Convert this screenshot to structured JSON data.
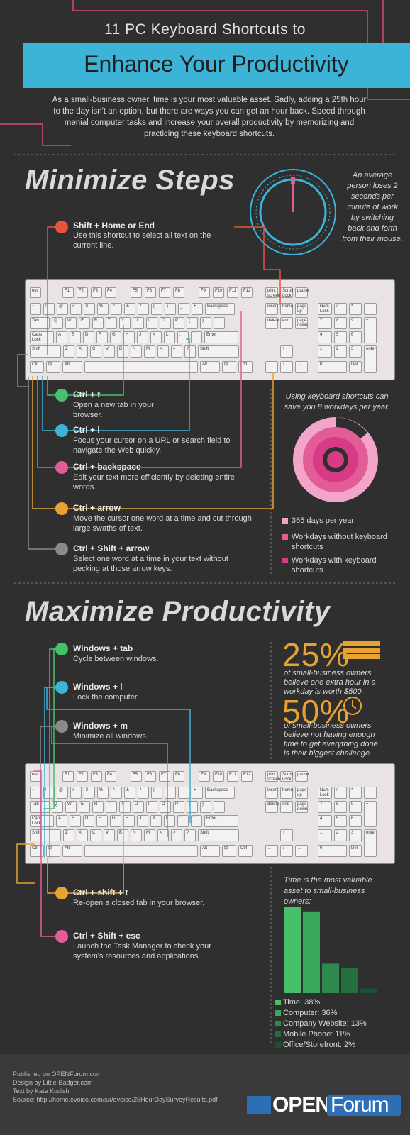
{
  "header": {
    "subtitle": "11 PC Keyboard Shortcuts to",
    "title": "Enhance Your Productivity",
    "intro": "As a small-business owner, time is your most valuable asset. Sadly, adding a 25th hour to the day isn't an option, but there are ways you can get an hour back. Speed through menial computer tasks and increase your overall productivity by memorizing and practicing these keyboard shortcuts."
  },
  "minimize": {
    "title": "Minimize Steps",
    "clock_note": "An average person loses 2 seconds per minute of work by switching back and forth from their mouse.",
    "shortcuts": [
      {
        "title": "Shift + Home or End",
        "desc": "Use this shortcut to select all text on the current line."
      },
      {
        "title": "Ctrl + t",
        "desc": "Open a new tab in your browser."
      },
      {
        "title": "Ctrl + l",
        "desc": "Focus your cursor on a URL or search field to navigate the Web quickly."
      },
      {
        "title": "Ctrl + backspace",
        "desc": "Edit your text more efficiently by deleting entire words."
      },
      {
        "title": "Ctrl + arrow",
        "desc": "Move the cursor one word at a time and cut through large swaths of text."
      },
      {
        "title": "Ctrl + Shift + arrow",
        "desc": "Select one word at a time in your text without pecking at those arrow keys."
      }
    ],
    "workdays_note": "Using keyboard shortcuts can save you 8 workdays per year.",
    "legend": [
      {
        "label": "365 days per year",
        "color": "#f2a5c8"
      },
      {
        "label": "Workdays without keyboard shortcuts",
        "color": "#e25d97"
      },
      {
        "label": "Workdays with keyboard shortcuts",
        "color": "#d93a86"
      }
    ]
  },
  "maximize": {
    "title": "Maximize Productivity",
    "shortcuts": [
      {
        "title": "Windows + tab",
        "desc": "Cycle between windows."
      },
      {
        "title": "Windows + l",
        "desc": "Lock the computer."
      },
      {
        "title": "Windows + m",
        "desc": "Minimize all windows."
      },
      {
        "title": "Ctrl + shift + t",
        "desc": "Re-open a closed tab in your browser."
      },
      {
        "title": "Ctrl + Shift + esc",
        "desc": "Launch the Task Manager to check your system's resources and applications."
      }
    ],
    "stats": [
      {
        "value": "25%",
        "text": "of small-business owners believe one extra hour in a workday is worth $500."
      },
      {
        "value": "50%",
        "text": "of small-business owners believe not having enough time to get everything done is their biggest challenge."
      }
    ],
    "bar_note": "Time is the most valuable asset to small-business owners:"
  },
  "chart_data": {
    "type": "bar",
    "categories": [
      "Time",
      "Computer",
      "Company Website",
      "Mobile Phone",
      "Office/Storefront"
    ],
    "values": [
      38,
      36,
      13,
      11,
      2
    ],
    "labels": [
      "Time: 38%",
      "Computer: 36%",
      "Company Website: 13%",
      "Mobile Phone: 11%",
      "Office/Storefront: 2%"
    ],
    "colors": [
      "#46c06a",
      "#3aa85b",
      "#2e8a4c",
      "#23703d",
      "#1a5230"
    ]
  },
  "keyboard": {
    "fkeys": [
      "esc",
      "F1",
      "F2",
      "F3",
      "F4",
      "F5",
      "F6",
      "F7",
      "F8",
      "F9",
      "F10",
      "F11",
      "F12"
    ],
    "row1": [
      "~",
      "!",
      "@",
      "#",
      "$",
      "%",
      "^",
      "&",
      "*",
      "(",
      ")",
      "_",
      "+",
      "Backspace"
    ],
    "row2": [
      "Tab",
      "Q",
      "W",
      "E",
      "R",
      "T",
      "Y",
      "U",
      "I",
      "O",
      "P",
      "{",
      "}",
      "|"
    ],
    "row3": [
      "Caps Lock",
      "A",
      "S",
      "D",
      "F",
      "G",
      "H",
      "J",
      "K",
      "L",
      ":",
      "\"",
      "Enter"
    ],
    "row4": [
      "Shift",
      "Z",
      "X",
      "C",
      "V",
      "B",
      "N",
      "M",
      "<",
      ">",
      "?",
      "Shift"
    ],
    "row5": [
      "Ctrl",
      "⊞",
      "Alt",
      "",
      "Alt",
      "⊞",
      "Ctrl"
    ],
    "nav": [
      "print screen",
      "Scroll Lock",
      "pause",
      "insert",
      "home",
      "page up",
      "delete",
      "end",
      "page down"
    ],
    "arrows": [
      "←",
      "↓",
      "→",
      "↑"
    ],
    "numpad": [
      "Num Lock",
      "/",
      "*",
      "-",
      "7",
      "8",
      "9",
      "+",
      "4",
      "5",
      "6",
      "1",
      "2",
      "3",
      "enter",
      "0",
      "Del"
    ]
  },
  "footer": {
    "lines": [
      "Published on OPENForum.com",
      "Design by Little-Badger.com",
      "Text by Kate Kudish",
      "Source: http://home.evoice.com/s/r/evoice/25HourDaySurveyResults.pdf"
    ],
    "logo_open": "OPEN",
    "logo_forum": "Forum"
  }
}
